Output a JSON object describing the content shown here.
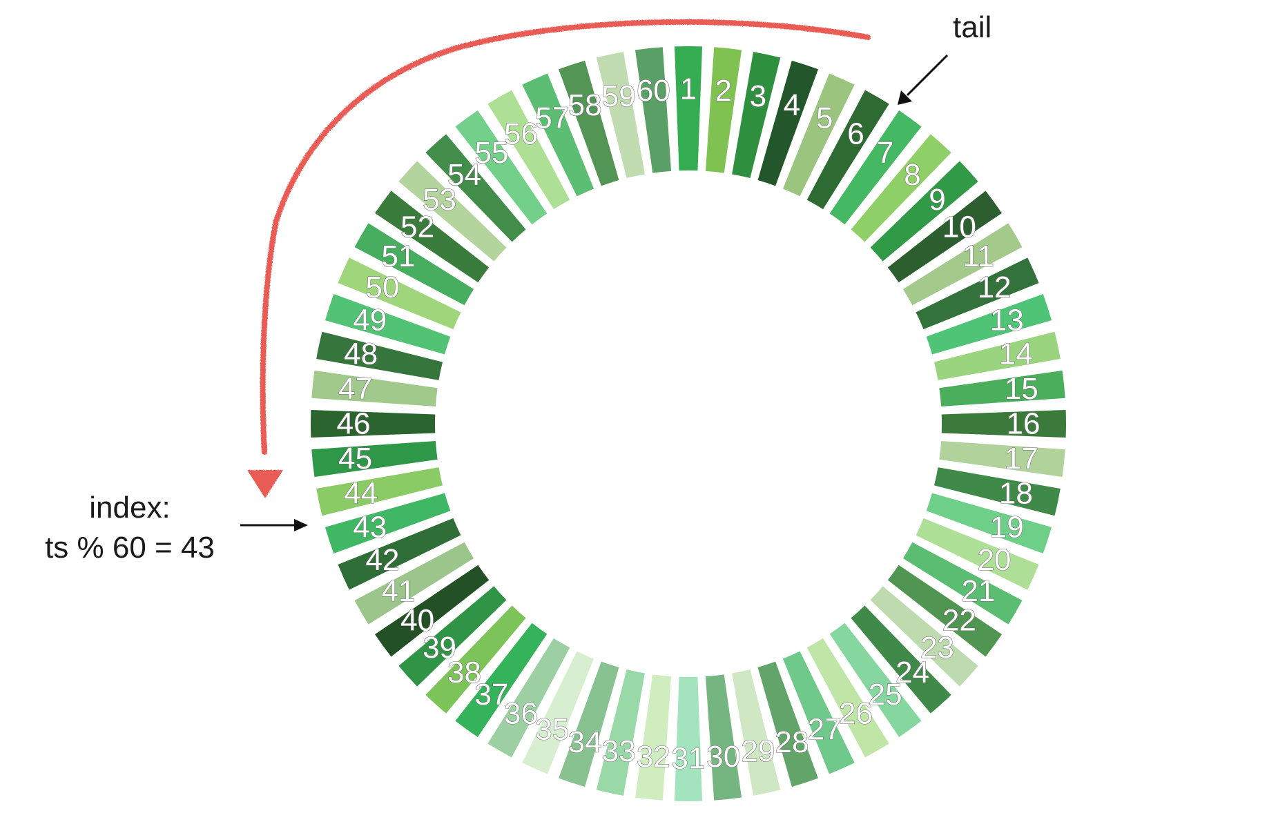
{
  "ring": {
    "segment_labels": [
      "1",
      "2",
      "3",
      "4",
      "5",
      "6",
      "7",
      "8",
      "9",
      "10",
      "11",
      "12",
      "13",
      "14",
      "15",
      "16",
      "17",
      "18",
      "19",
      "20",
      "21",
      "22",
      "23",
      "24",
      "25",
      "26",
      "27",
      "28",
      "29",
      "30",
      "31",
      "32",
      "33",
      "34",
      "35",
      "36",
      "37",
      "38",
      "39",
      "40",
      "41",
      "42",
      "43",
      "44",
      "45",
      "46",
      "47",
      "48",
      "49",
      "50",
      "51",
      "52",
      "53",
      "54",
      "55",
      "56",
      "57",
      "58",
      "59",
      "60"
    ],
    "segment_colors": [
      "#34ad52",
      "#7fc252",
      "#2e8f3f",
      "#23562a",
      "#9bc57f",
      "#2e6b33",
      "#45b863",
      "#8fcf68",
      "#319a47",
      "#2c5e30",
      "#a3c98b",
      "#33723a",
      "#4fc477",
      "#9ad47e",
      "#4aae5d",
      "#3b7a3b",
      "#b2d29c",
      "#3f8a48",
      "#6ecf88",
      "#addf96",
      "#5bbd72",
      "#519553",
      "#bedbb0",
      "#408a49",
      "#86d79f",
      "#bfe6a6",
      "#6fc98a",
      "#62a469",
      "#cfe8c3",
      "#75b57f",
      "#a3e3be",
      "#d0edc0",
      "#99d9a8",
      "#88c291",
      "#d7efd0",
      "#9ccfa2",
      "#35b35b",
      "#7cc459",
      "#2f9446",
      "#235025",
      "#9bc58a",
      "#2f6e36",
      "#40b764",
      "#8acb65",
      "#2f9848",
      "#2c6430",
      "#a2c98c",
      "#36763d",
      "#52c374",
      "#9fd67c",
      "#47ad5f",
      "#3a7c3c",
      "#b4d49d",
      "#428d4a",
      "#72d08b",
      "#addf95",
      "#5bbe73",
      "#539555",
      "#c0dcb0",
      "#5a9f66"
    ],
    "tail_segment": "6",
    "index_segment": "43"
  },
  "annotations": {
    "tail_label": "tail",
    "index_line1": "index:",
    "index_line2": "ts % 60 = 43"
  },
  "colors": {
    "arc_color": "#e85c54",
    "arrow_color": "#111111"
  }
}
